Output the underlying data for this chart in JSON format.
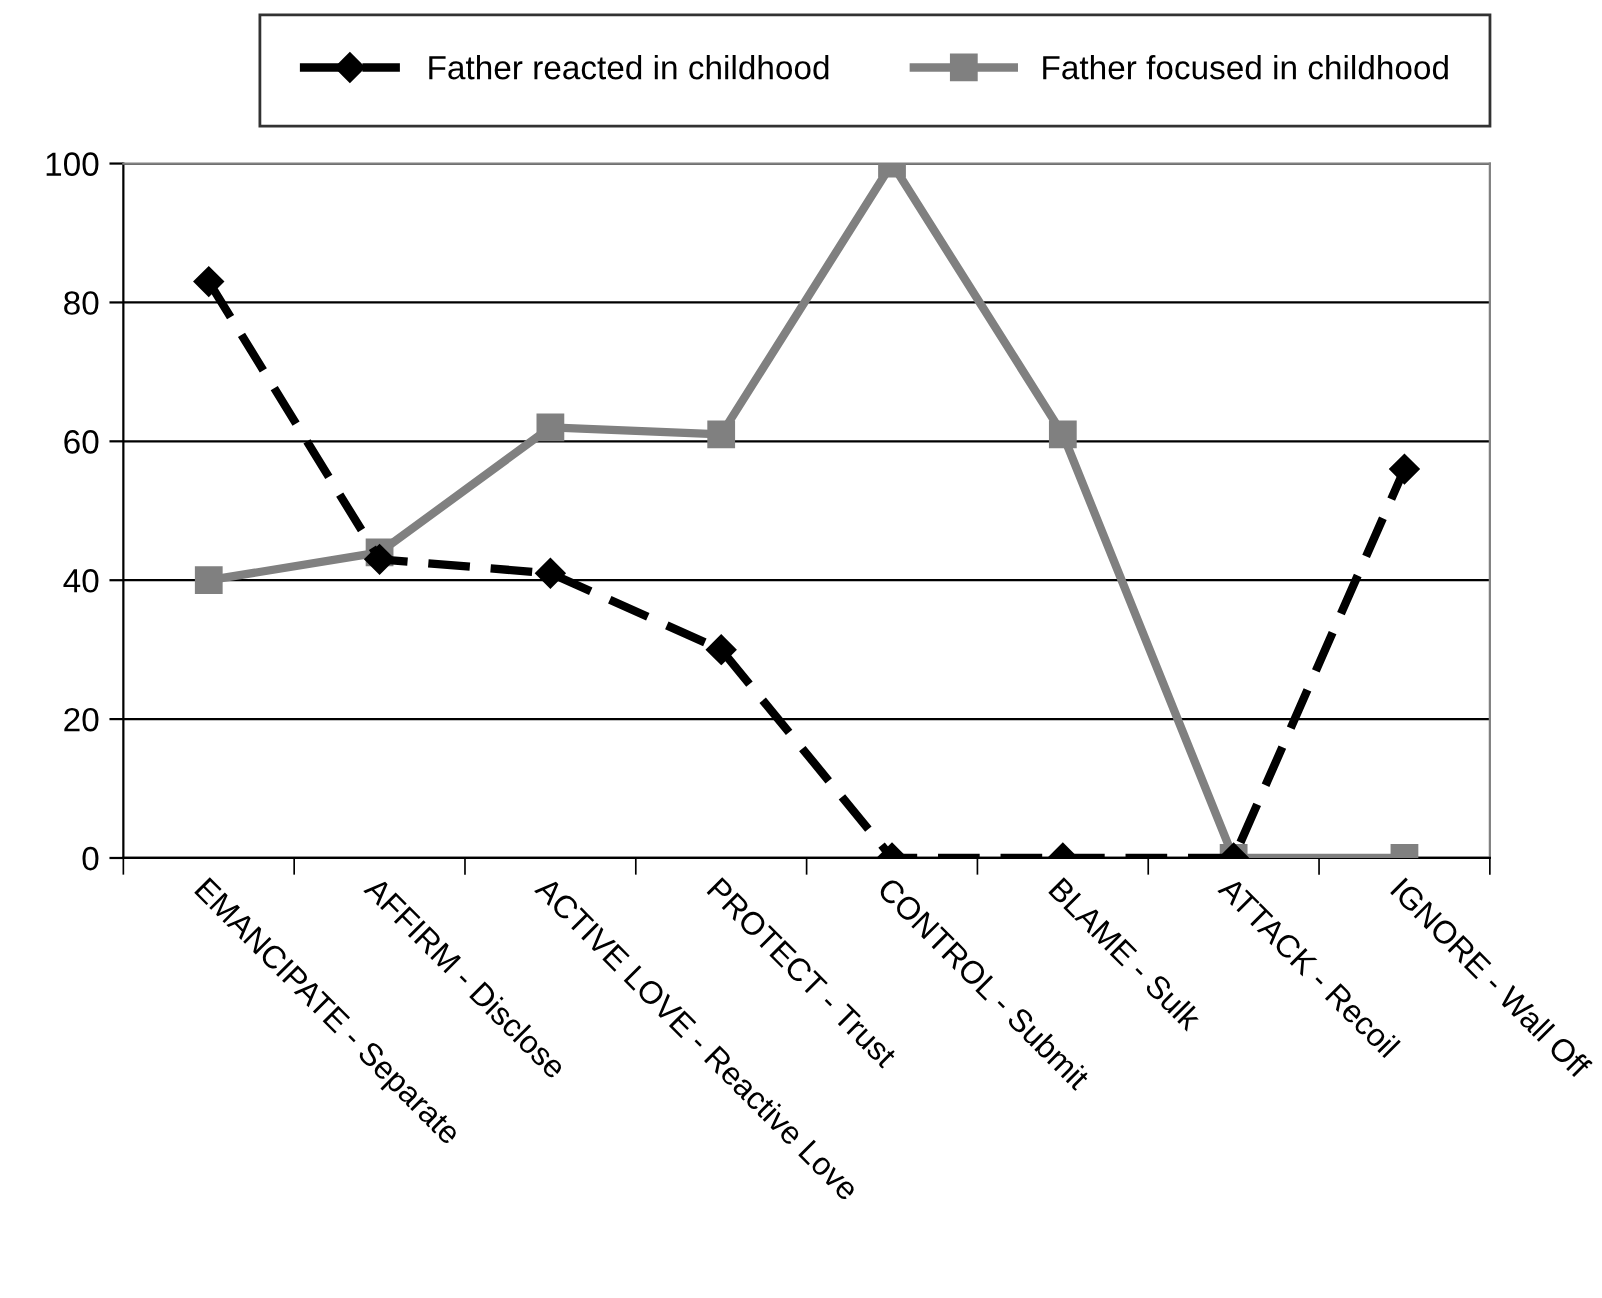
{
  "chart_data": {
    "type": "line",
    "categories": [
      "EMANCIPATE - Separate",
      "AFFIRM - Disclose",
      "ACTIVE LOVE - Reactive Love",
      "PROTECT - Trust",
      "CONTROL - Submit",
      "BLAME - Sulk",
      "ATTACK - Recoil",
      "IGNORE - Wall Off"
    ],
    "series": [
      {
        "name": "Father reacted in childhood",
        "color": "#000000",
        "marker": "diamond",
        "line_style": "dashed",
        "values": [
          83,
          43,
          41,
          30,
          0,
          0,
          0,
          56
        ]
      },
      {
        "name": "Father focused in childhood",
        "color": "#808080",
        "marker": "square",
        "line_style": "solid",
        "values": [
          40,
          44,
          62,
          61,
          100,
          61,
          0,
          0
        ]
      }
    ],
    "ylim": [
      0,
      100
    ],
    "yticks": [
      0,
      20,
      40,
      60,
      80,
      100
    ],
    "grid": "y",
    "legend": "top"
  }
}
